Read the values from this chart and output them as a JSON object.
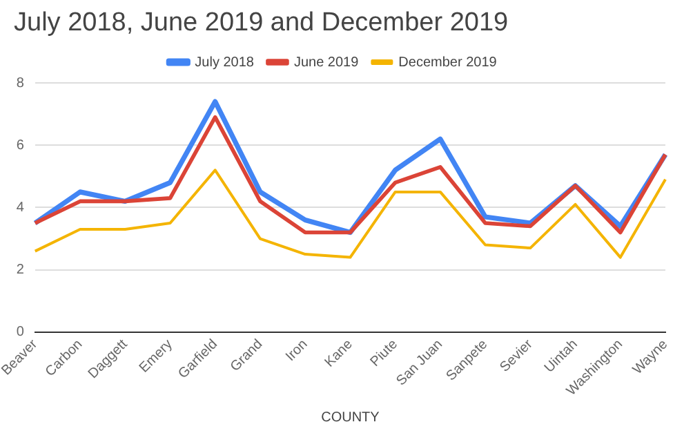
{
  "chart_data": {
    "type": "line",
    "title": "July 2018, June 2019 and December 2019",
    "xlabel": "COUNTY",
    "categories": [
      "Beaver",
      "Carbon",
      "Daggett",
      "Emery",
      "Garfield",
      "Grand",
      "Iron",
      "Kane",
      "Piute",
      "San Juan",
      "Sanpete",
      "Sevier",
      "Uintah",
      "Washington",
      "Wayne"
    ],
    "series": [
      {
        "name": "July 2018",
        "color": "#4285f4",
        "values": [
          3.5,
          4.5,
          4.2,
          4.8,
          7.4,
          4.5,
          3.6,
          3.2,
          5.2,
          6.2,
          3.7,
          3.5,
          4.7,
          3.4,
          5.7
        ]
      },
      {
        "name": "June 2019",
        "color": "#db4437",
        "values": [
          3.5,
          4.2,
          4.2,
          4.3,
          6.9,
          4.2,
          3.2,
          3.2,
          4.8,
          5.3,
          3.5,
          3.4,
          4.7,
          3.2,
          5.7
        ]
      },
      {
        "name": "December 2019",
        "color": "#f4b400",
        "values": [
          2.6,
          3.3,
          3.3,
          3.5,
          5.2,
          3.0,
          2.5,
          2.4,
          4.5,
          4.5,
          2.8,
          2.7,
          4.1,
          2.4,
          4.9
        ]
      }
    ],
    "ylim": [
      0,
      8
    ],
    "yticks": [
      0,
      2,
      4,
      6,
      8
    ],
    "grid": "y",
    "legend": "top",
    "marker": "none"
  }
}
